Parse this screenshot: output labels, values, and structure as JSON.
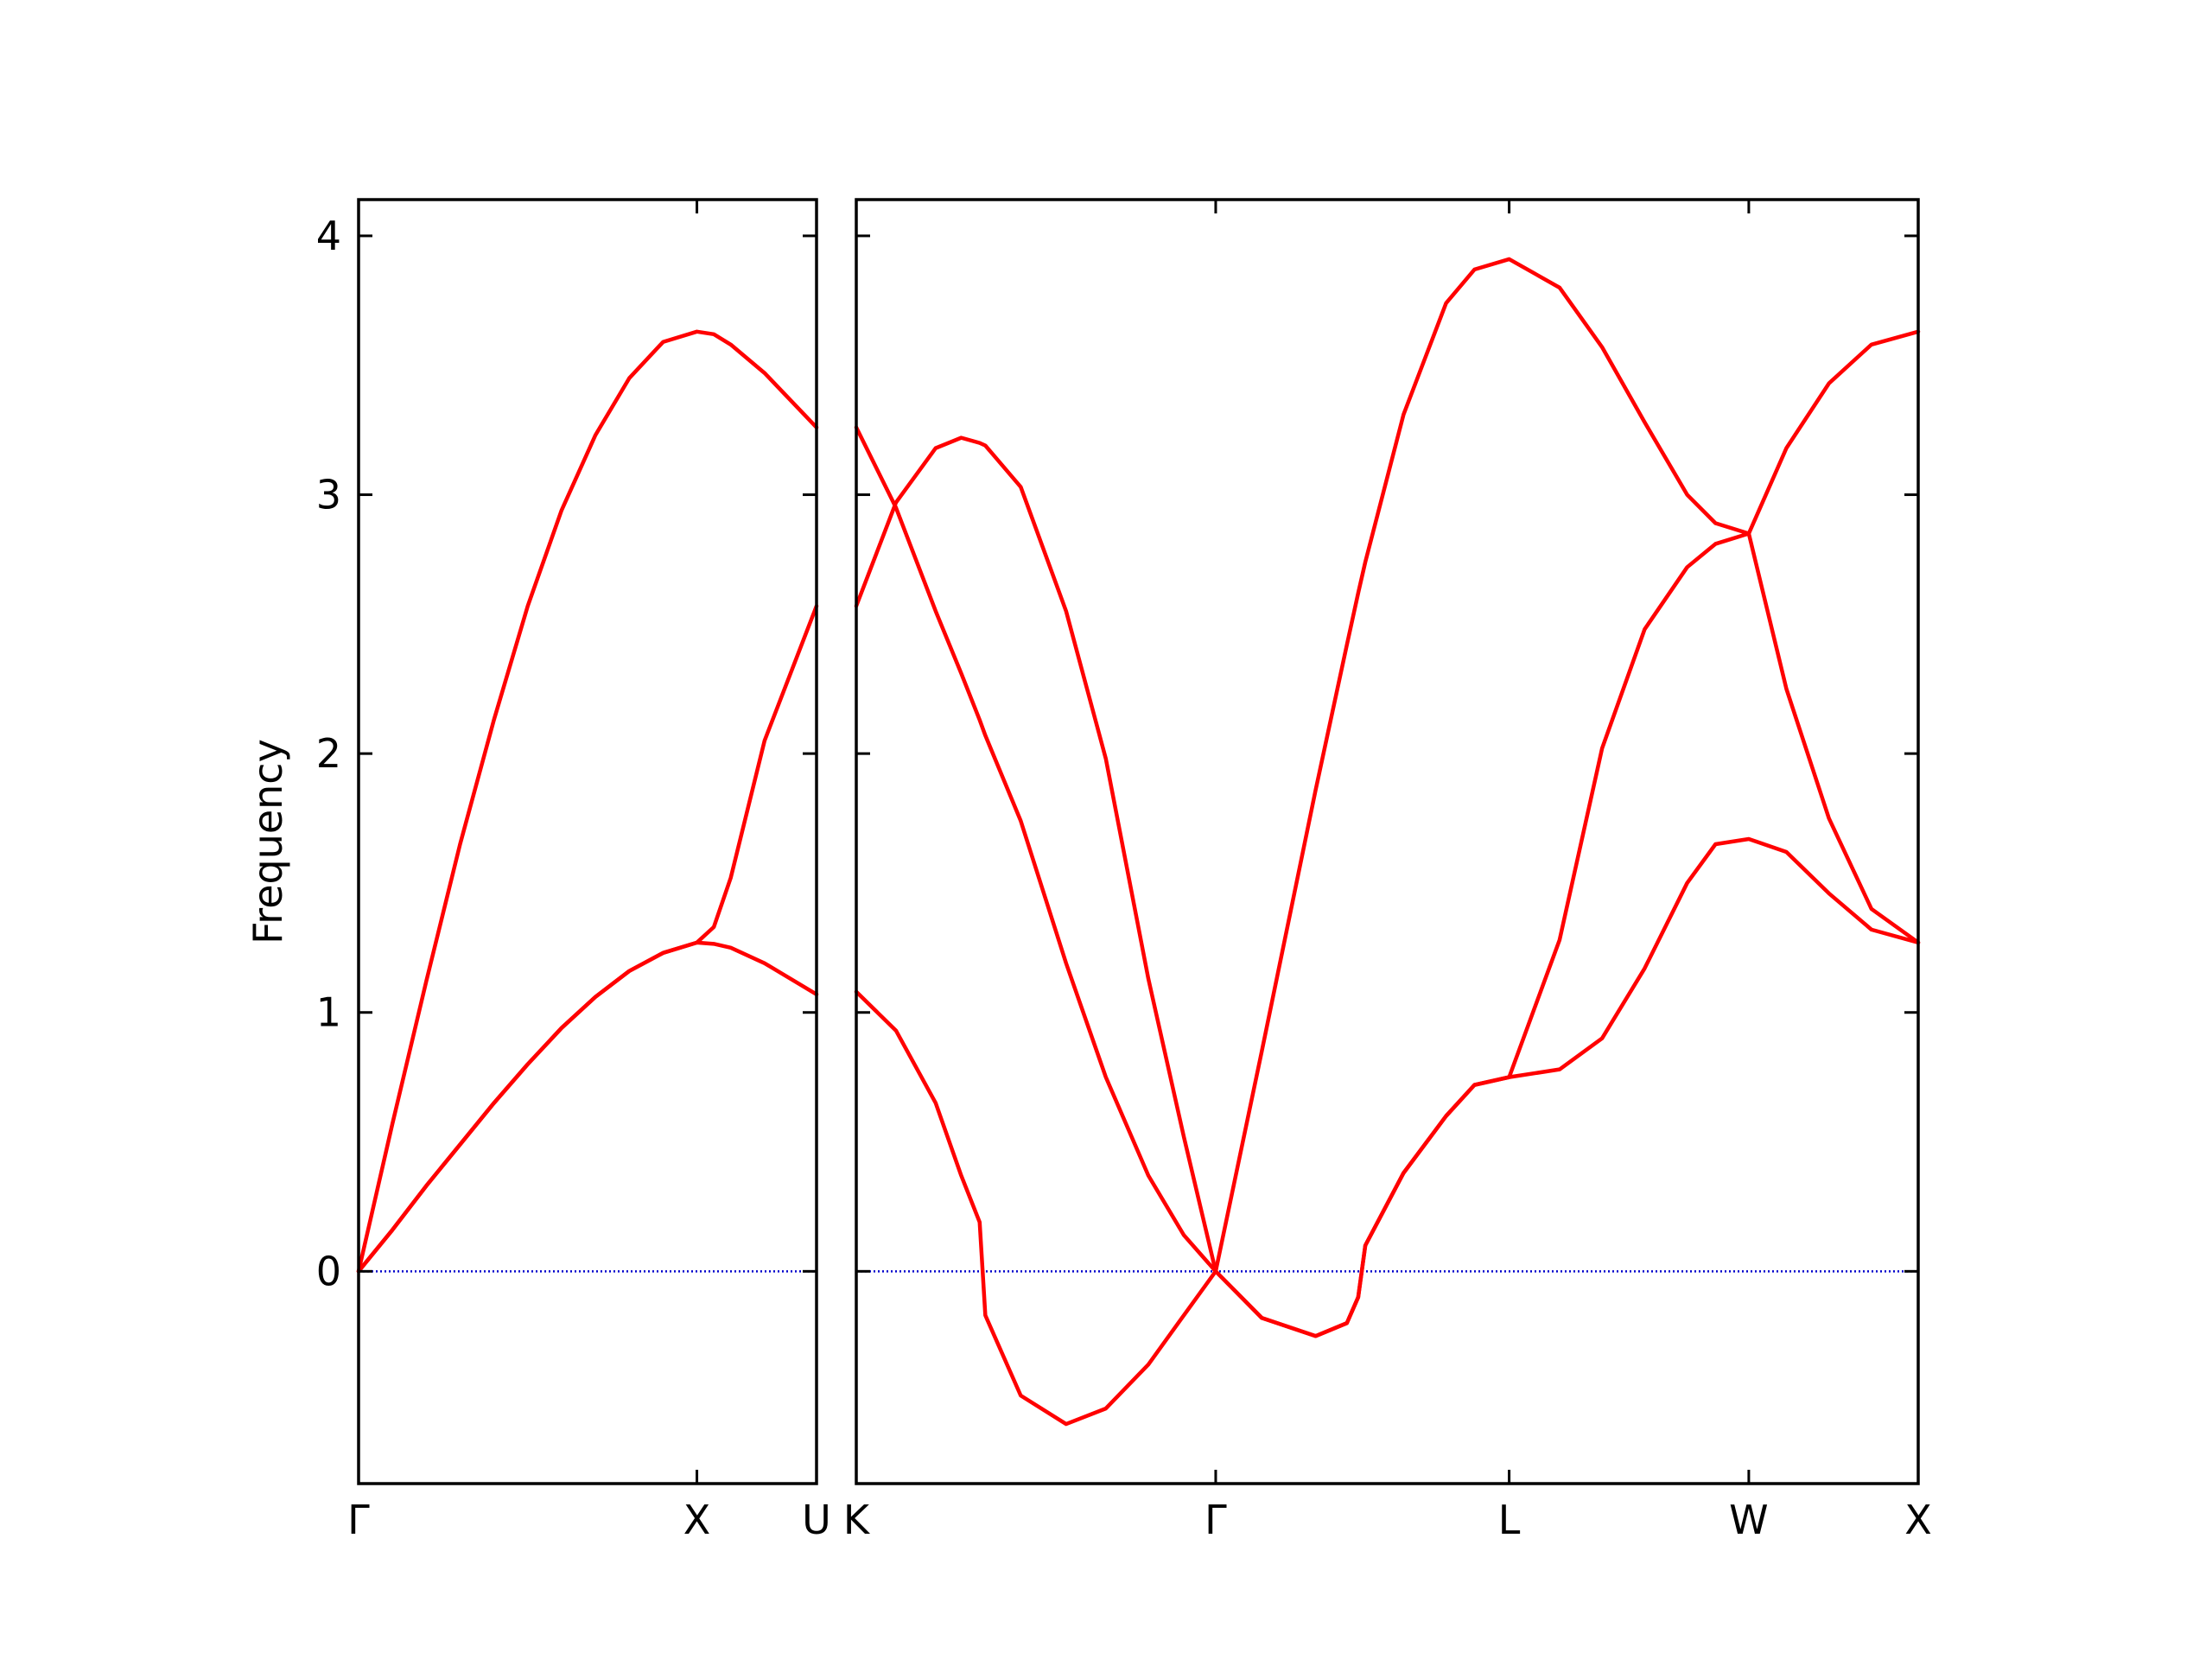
{
  "chart_data": [
    {
      "type": "line",
      "ylabel": "Frequency",
      "x": [
        0,
        0.1,
        0.2,
        0.3,
        0.4,
        0.5,
        0.6,
        0.7,
        0.8,
        0.9,
        1,
        1.05,
        1.1,
        1.2,
        1.3536
      ],
      "series": [
        {
          "color": "#ff0000",
          "values": [
            0,
            0.57,
            1.12,
            1.65,
            2.13,
            2.57,
            2.94,
            3.23,
            3.45,
            3.59,
            3.63,
            3.62,
            3.58,
            3.47,
            3.26
          ]
        },
        {
          "color": "#ff0000",
          "values": [
            0,
            0.16,
            0.33,
            0.49,
            0.65,
            0.8,
            0.94,
            1.06,
            1.16,
            1.23,
            1.27,
            1.265,
            1.25,
            1.19,
            1.07
          ]
        },
        {
          "color": "#ff0000",
          "values": [
            0,
            0.16,
            0.33,
            0.49,
            0.65,
            0.8,
            0.94,
            1.06,
            1.16,
            1.23,
            1.27,
            1.33,
            1.52,
            2.05,
            2.57
          ]
        }
      ],
      "xlim": [
        0,
        1.3536
      ],
      "xticks": [
        {
          "value": 0,
          "label": "Γ"
        },
        {
          "value": 1,
          "label": "X"
        },
        {
          "value": 1.3536,
          "label": "U"
        }
      ],
      "ylim": [
        -0.82,
        4.14
      ],
      "yticks": [
        0,
        1,
        2,
        3,
        4
      ],
      "ytick_labels": true,
      "hline": 0,
      "hline_color": "#0000cc"
    },
    {
      "type": "line",
      "x": [
        1.3536,
        1.4707,
        1.5879,
        1.6632,
        1.7176,
        1.7344,
        1.8389,
        1.9728,
        2.09,
        2.2155,
        2.3201,
        2.4142,
        2.5502,
        2.7092,
        2.8013,
        2.8347,
        2.8557,
        2.9686,
        3.0941,
        3.1778,
        3.2802,
        3.4289,
        3.5544,
        3.6799,
        3.8054,
        3.8891,
        3.9873,
        4.0983,
        4.2238,
        4.3493,
        4.4873
      ],
      "series": [
        {
          "color": "#ff0000",
          "values": [
            3.26,
            2.95,
            2.55,
            2.31,
            2.13,
            2.07,
            1.74,
            1.19,
            0.75,
            0.37,
            0.14,
            0,
            0.85,
            1.86,
            2.42,
            2.62,
            2.74,
            3.31,
            3.74,
            3.87,
            3.91,
            3.8,
            3.57,
            3.28,
            3.0,
            2.89,
            2.85,
            3.18,
            3.43,
            3.58,
            3.63
          ]
        },
        {
          "color": "#ff0000",
          "values": [
            2.57,
            2.97,
            3.18,
            3.22,
            3.2,
            3.19,
            3.03,
            2.55,
            1.98,
            1.13,
            0.52,
            0,
            -0.18,
            -0.25,
            -0.2,
            -0.1,
            0.1,
            0.38,
            0.6,
            0.72,
            0.75,
            1.28,
            2.02,
            2.48,
            2.72,
            2.81,
            2.85,
            2.25,
            1.75,
            1.4,
            1.27
          ]
        },
        {
          "color": "#ff0000",
          "values": [
            1.08,
            0.93,
            0.65,
            0.37,
            0.19,
            -0.17,
            -0.48,
            -0.59,
            -0.53,
            -0.36,
            -0.17,
            0,
            -0.18,
            -0.25,
            -0.2,
            -0.1,
            0.1,
            0.38,
            0.6,
            0.72,
            0.75,
            0.78,
            0.9,
            1.17,
            1.5,
            1.65,
            1.67,
            1.62,
            1.46,
            1.32,
            1.27
          ]
        }
      ],
      "xlim": [
        1.3536,
        4.4873
      ],
      "xticks": [
        {
          "value": 1.3536,
          "label": "K"
        },
        {
          "value": 2.4142,
          "label": "Γ"
        },
        {
          "value": 3.2802,
          "label": "L"
        },
        {
          "value": 3.9873,
          "label": "W"
        },
        {
          "value": 4.4873,
          "label": "X"
        }
      ],
      "ylim": [
        -0.82,
        4.14
      ],
      "yticks": [
        0,
        1,
        2,
        3,
        4
      ],
      "ytick_labels": false,
      "hline": 0,
      "hline_color": "#0000cc"
    }
  ]
}
